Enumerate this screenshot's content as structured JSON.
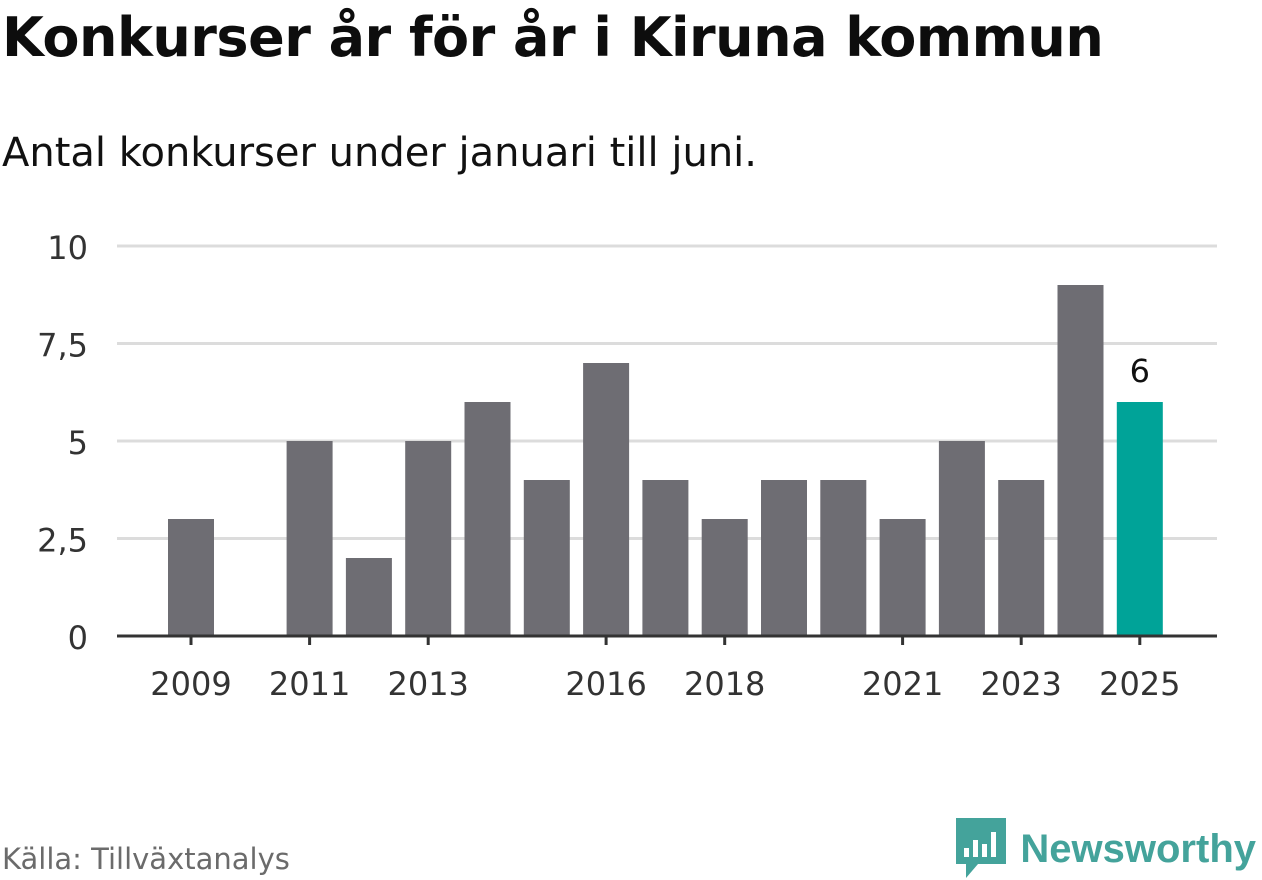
{
  "title": "Konkurser år för år i Kiruna kommun",
  "subtitle": "Antal konkurser under januari till juni.",
  "source": "Källa: Tillväxtanalys",
  "brand": {
    "name": "Newsworthy",
    "icon": "newsworthy-logo-icon",
    "color": "#44a39b"
  },
  "chart_data": {
    "type": "bar",
    "categories": [
      "2009",
      "2010",
      "2011",
      "2012",
      "2013",
      "2014",
      "2015",
      "2016",
      "2017",
      "2018",
      "2019",
      "2020",
      "2021",
      "2022",
      "2023",
      "2024",
      "2025"
    ],
    "values": [
      3,
      0,
      5,
      2,
      5,
      6,
      4,
      7,
      4,
      3,
      4,
      4,
      3,
      5,
      4,
      9,
      6
    ],
    "x_tick_labels": [
      "2009",
      "2011",
      "2013",
      "2016",
      "2018",
      "2021",
      "2023",
      "2025"
    ],
    "y_ticks": [
      0,
      2.5,
      5,
      7.5,
      10
    ],
    "y_tick_labels": [
      "0",
      "2,5",
      "5",
      "7,5",
      "10"
    ],
    "ylim": [
      0,
      10
    ],
    "grid": true,
    "highlight": {
      "category": "2025",
      "label": "6"
    },
    "colors": {
      "bar": "#6e6d73",
      "highlight": "#00a398",
      "grid": "#dcdcdc",
      "axis": "#333333"
    }
  }
}
